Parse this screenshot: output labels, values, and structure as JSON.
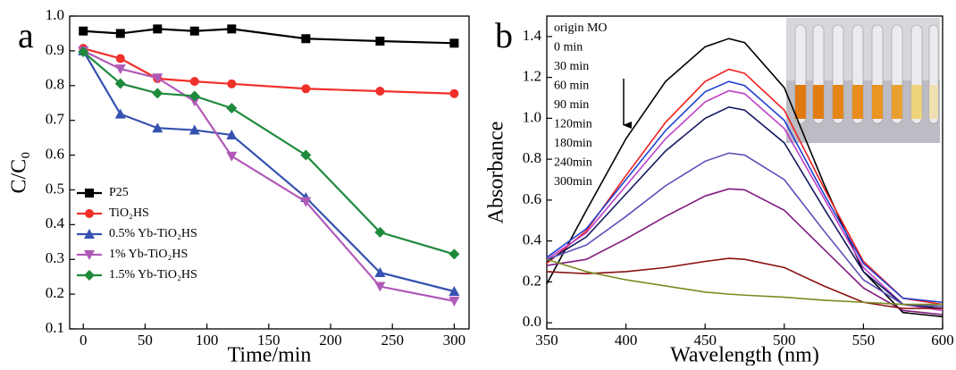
{
  "chart_data": [
    {
      "type": "line",
      "panel": "a",
      "x_label": "Time/min",
      "y_label": "C/C₀",
      "x": [
        0,
        30,
        60,
        90,
        120,
        180,
        240,
        300
      ],
      "xlim": [
        -11,
        312
      ],
      "xticks": [
        0,
        50,
        100,
        150,
        200,
        250,
        300
      ],
      "ylim": [
        0.1,
        1.0
      ],
      "yticks": [
        0.1,
        0.2,
        0.3,
        0.4,
        0.5,
        0.6,
        0.7,
        0.8,
        0.9,
        {
          "value": 1.0,
          "label": "1.0"
        }
      ],
      "legend": "lower left",
      "series": [
        {
          "name": "P25",
          "color": "#000000",
          "marker": "square",
          "values": [
            0.957,
            0.95,
            0.963,
            0.957,
            0.963,
            0.935,
            0.928,
            0.922
          ]
        },
        {
          "name": "TiO₂HS",
          "color": "#f0302a",
          "marker": "circle",
          "values": [
            0.907,
            0.878,
            0.82,
            0.812,
            0.805,
            0.791,
            0.784,
            0.777
          ]
        },
        {
          "name": "0.5% Yb-TiO₂HS",
          "color": "#3552b0",
          "marker": "triangle-up",
          "values": [
            0.9,
            0.718,
            0.678,
            0.672,
            0.658,
            0.478,
            0.262,
            0.208
          ]
        },
        {
          "name": "1% Yb-TiO₂HS",
          "color": "#b05ab8",
          "marker": "triangle-down",
          "values": [
            0.9,
            0.848,
            0.822,
            0.755,
            0.597,
            0.466,
            0.222,
            0.18
          ]
        },
        {
          "name": "1.5% Yb-TiO₂HS",
          "color": "#1e8a3c",
          "marker": "diamond",
          "values": [
            0.897,
            0.806,
            0.778,
            0.77,
            0.735,
            0.6,
            0.378,
            0.315
          ]
        }
      ]
    },
    {
      "type": "line",
      "panel": "b",
      "x_label": "Wavelength (nm)",
      "y_label": "Absorbance",
      "x": [
        350,
        375,
        400,
        425,
        450,
        465,
        475,
        500,
        525,
        550,
        575,
        600
      ],
      "xlim": [
        350,
        600
      ],
      "xticks": [
        350,
        400,
        450,
        500,
        550,
        600
      ],
      "ylim": [
        -0.03,
        1.5
      ],
      "yticks": [
        {
          "value": 0,
          "label": "0.0"
        },
        0.2,
        0.4,
        0.6,
        0.8,
        {
          "value": 1.0,
          "label": "1.0"
        },
        1.2,
        1.4
      ],
      "legend": "upper left",
      "series": [
        {
          "name": "origin MO",
          "color": "#000000",
          "values": [
            0.19,
            0.55,
            0.9,
            1.18,
            1.35,
            1.39,
            1.37,
            1.15,
            0.68,
            0.25,
            0.05,
            0.03
          ]
        },
        {
          "name": "0 min",
          "color": "#f02020",
          "values": [
            0.29,
            0.45,
            0.72,
            0.98,
            1.18,
            1.24,
            1.22,
            1.04,
            0.66,
            0.3,
            0.12,
            0.09
          ]
        },
        {
          "name": "30 min",
          "color": "#2040d0",
          "values": [
            0.32,
            0.46,
            0.7,
            0.94,
            1.13,
            1.18,
            1.16,
            0.99,
            0.63,
            0.29,
            0.12,
            0.1
          ]
        },
        {
          "name": "60 min",
          "color": "#c040c8",
          "values": [
            0.31,
            0.44,
            0.67,
            0.9,
            1.08,
            1.135,
            1.12,
            0.95,
            0.61,
            0.27,
            0.09,
            0.06
          ]
        },
        {
          "name": "90 min",
          "color": "#141a60",
          "values": [
            0.3,
            0.42,
            0.63,
            0.84,
            1.0,
            1.055,
            1.04,
            0.88,
            0.56,
            0.25,
            0.09,
            0.07
          ]
        },
        {
          "name": "120min",
          "color": "#5a50b8",
          "values": [
            0.31,
            0.38,
            0.52,
            0.67,
            0.79,
            0.83,
            0.82,
            0.7,
            0.45,
            0.21,
            0.09,
            0.08
          ]
        },
        {
          "name": "180min",
          "color": "#801a80",
          "values": [
            0.28,
            0.31,
            0.41,
            0.52,
            0.62,
            0.655,
            0.65,
            0.55,
            0.36,
            0.17,
            0.06,
            0.04
          ]
        },
        {
          "name": "240min",
          "color": "#8a1010",
          "values": [
            0.25,
            0.24,
            0.25,
            0.27,
            0.3,
            0.315,
            0.31,
            0.27,
            0.18,
            0.1,
            0.07,
            0.07
          ]
        },
        {
          "name": "300min",
          "color": "#7a8a20",
          "values": [
            0.31,
            0.25,
            0.21,
            0.18,
            0.15,
            0.14,
            0.135,
            0.125,
            0.11,
            0.1,
            0.09,
            0.09
          ]
        }
      ]
    }
  ]
}
